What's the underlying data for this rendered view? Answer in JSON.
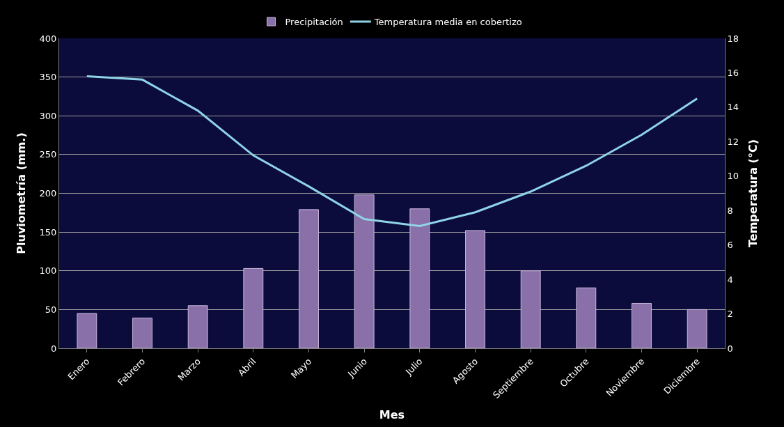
{
  "chart_data": {
    "type": "bar",
    "xlabel": "Mes",
    "ylabel": "Pluviometría (mm.)",
    "y2label": "Temperatura (°C)",
    "categories": [
      "Enero",
      "Febrero",
      "Marzo",
      "Abril",
      "Mayo",
      "Junio",
      "Julio",
      "Agosto",
      "Septiembre",
      "Octubre",
      "Noviembre",
      "Diciembre"
    ],
    "series": [
      {
        "name": "Precipitación",
        "color": "#8a70a8",
        "values": [
          45,
          39,
          55,
          103,
          179,
          198,
          180,
          152,
          100,
          78,
          58,
          50
        ]
      },
      {
        "name": "Temperatura media en cobertizo",
        "type": "line",
        "axis": "y2",
        "color": "#8fd3e6",
        "values": [
          15.8,
          15.6,
          13.8,
          11.2,
          9.4,
          7.5,
          7.1,
          7.9,
          9.1,
          10.6,
          12.4,
          14.5
        ]
      }
    ],
    "ylim": [
      0,
      400
    ],
    "yticks": [
      0,
      50,
      100,
      150,
      200,
      250,
      300,
      350,
      400
    ],
    "y2lim": [
      0,
      18
    ],
    "y2ticks": [
      0,
      2,
      4,
      6,
      8,
      10,
      12,
      14,
      16,
      18
    ],
    "grid": "y",
    "legend": "top",
    "marker": "none",
    "line_style": "solid"
  }
}
